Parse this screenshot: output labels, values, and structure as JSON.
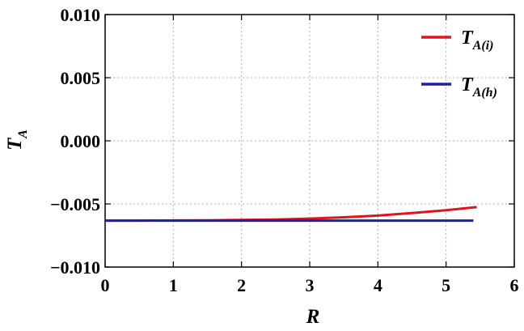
{
  "chart_data": {
    "type": "line",
    "title": "",
    "xlabel": "R",
    "ylabel": {
      "main": "T",
      "sub": "A"
    },
    "xlim": [
      0,
      6
    ],
    "ylim": [
      -0.01,
      0.01
    ],
    "grid": true,
    "legend_position": "top-right",
    "x_ticks": [
      {
        "value": 0,
        "label": "0"
      },
      {
        "value": 1,
        "label": "1"
      },
      {
        "value": 2,
        "label": "2"
      },
      {
        "value": 3,
        "label": "3"
      },
      {
        "value": 4,
        "label": "4"
      },
      {
        "value": 5,
        "label": "5"
      },
      {
        "value": 6,
        "label": "6"
      }
    ],
    "y_ticks": [
      {
        "value": 0.01,
        "label": "0.010"
      },
      {
        "value": 0.005,
        "label": "0.005"
      },
      {
        "value": 0.0,
        "label": "0.000"
      },
      {
        "value": -0.005,
        "label": "−0.005"
      },
      {
        "value": -0.01,
        "label": "−0.010"
      }
    ],
    "series": [
      {
        "name": {
          "main": "T",
          "sub": "A(i)"
        },
        "color": "#e0141e",
        "x": [
          0,
          0.5,
          1,
          1.5,
          2,
          2.5,
          3,
          3.5,
          4,
          4.5,
          5,
          5.45
        ],
        "y": [
          -0.00632,
          -0.00632,
          -0.00631,
          -0.0063,
          -0.00627,
          -0.00623,
          -0.00616,
          -0.00606,
          -0.00592,
          -0.00572,
          -0.0055,
          -0.00525
        ]
      },
      {
        "name": {
          "main": "T",
          "sub": "A(h)"
        },
        "color": "#1e1ea8",
        "x": [
          0,
          5.4
        ],
        "y": [
          -0.00632,
          -0.00632
        ]
      }
    ]
  }
}
